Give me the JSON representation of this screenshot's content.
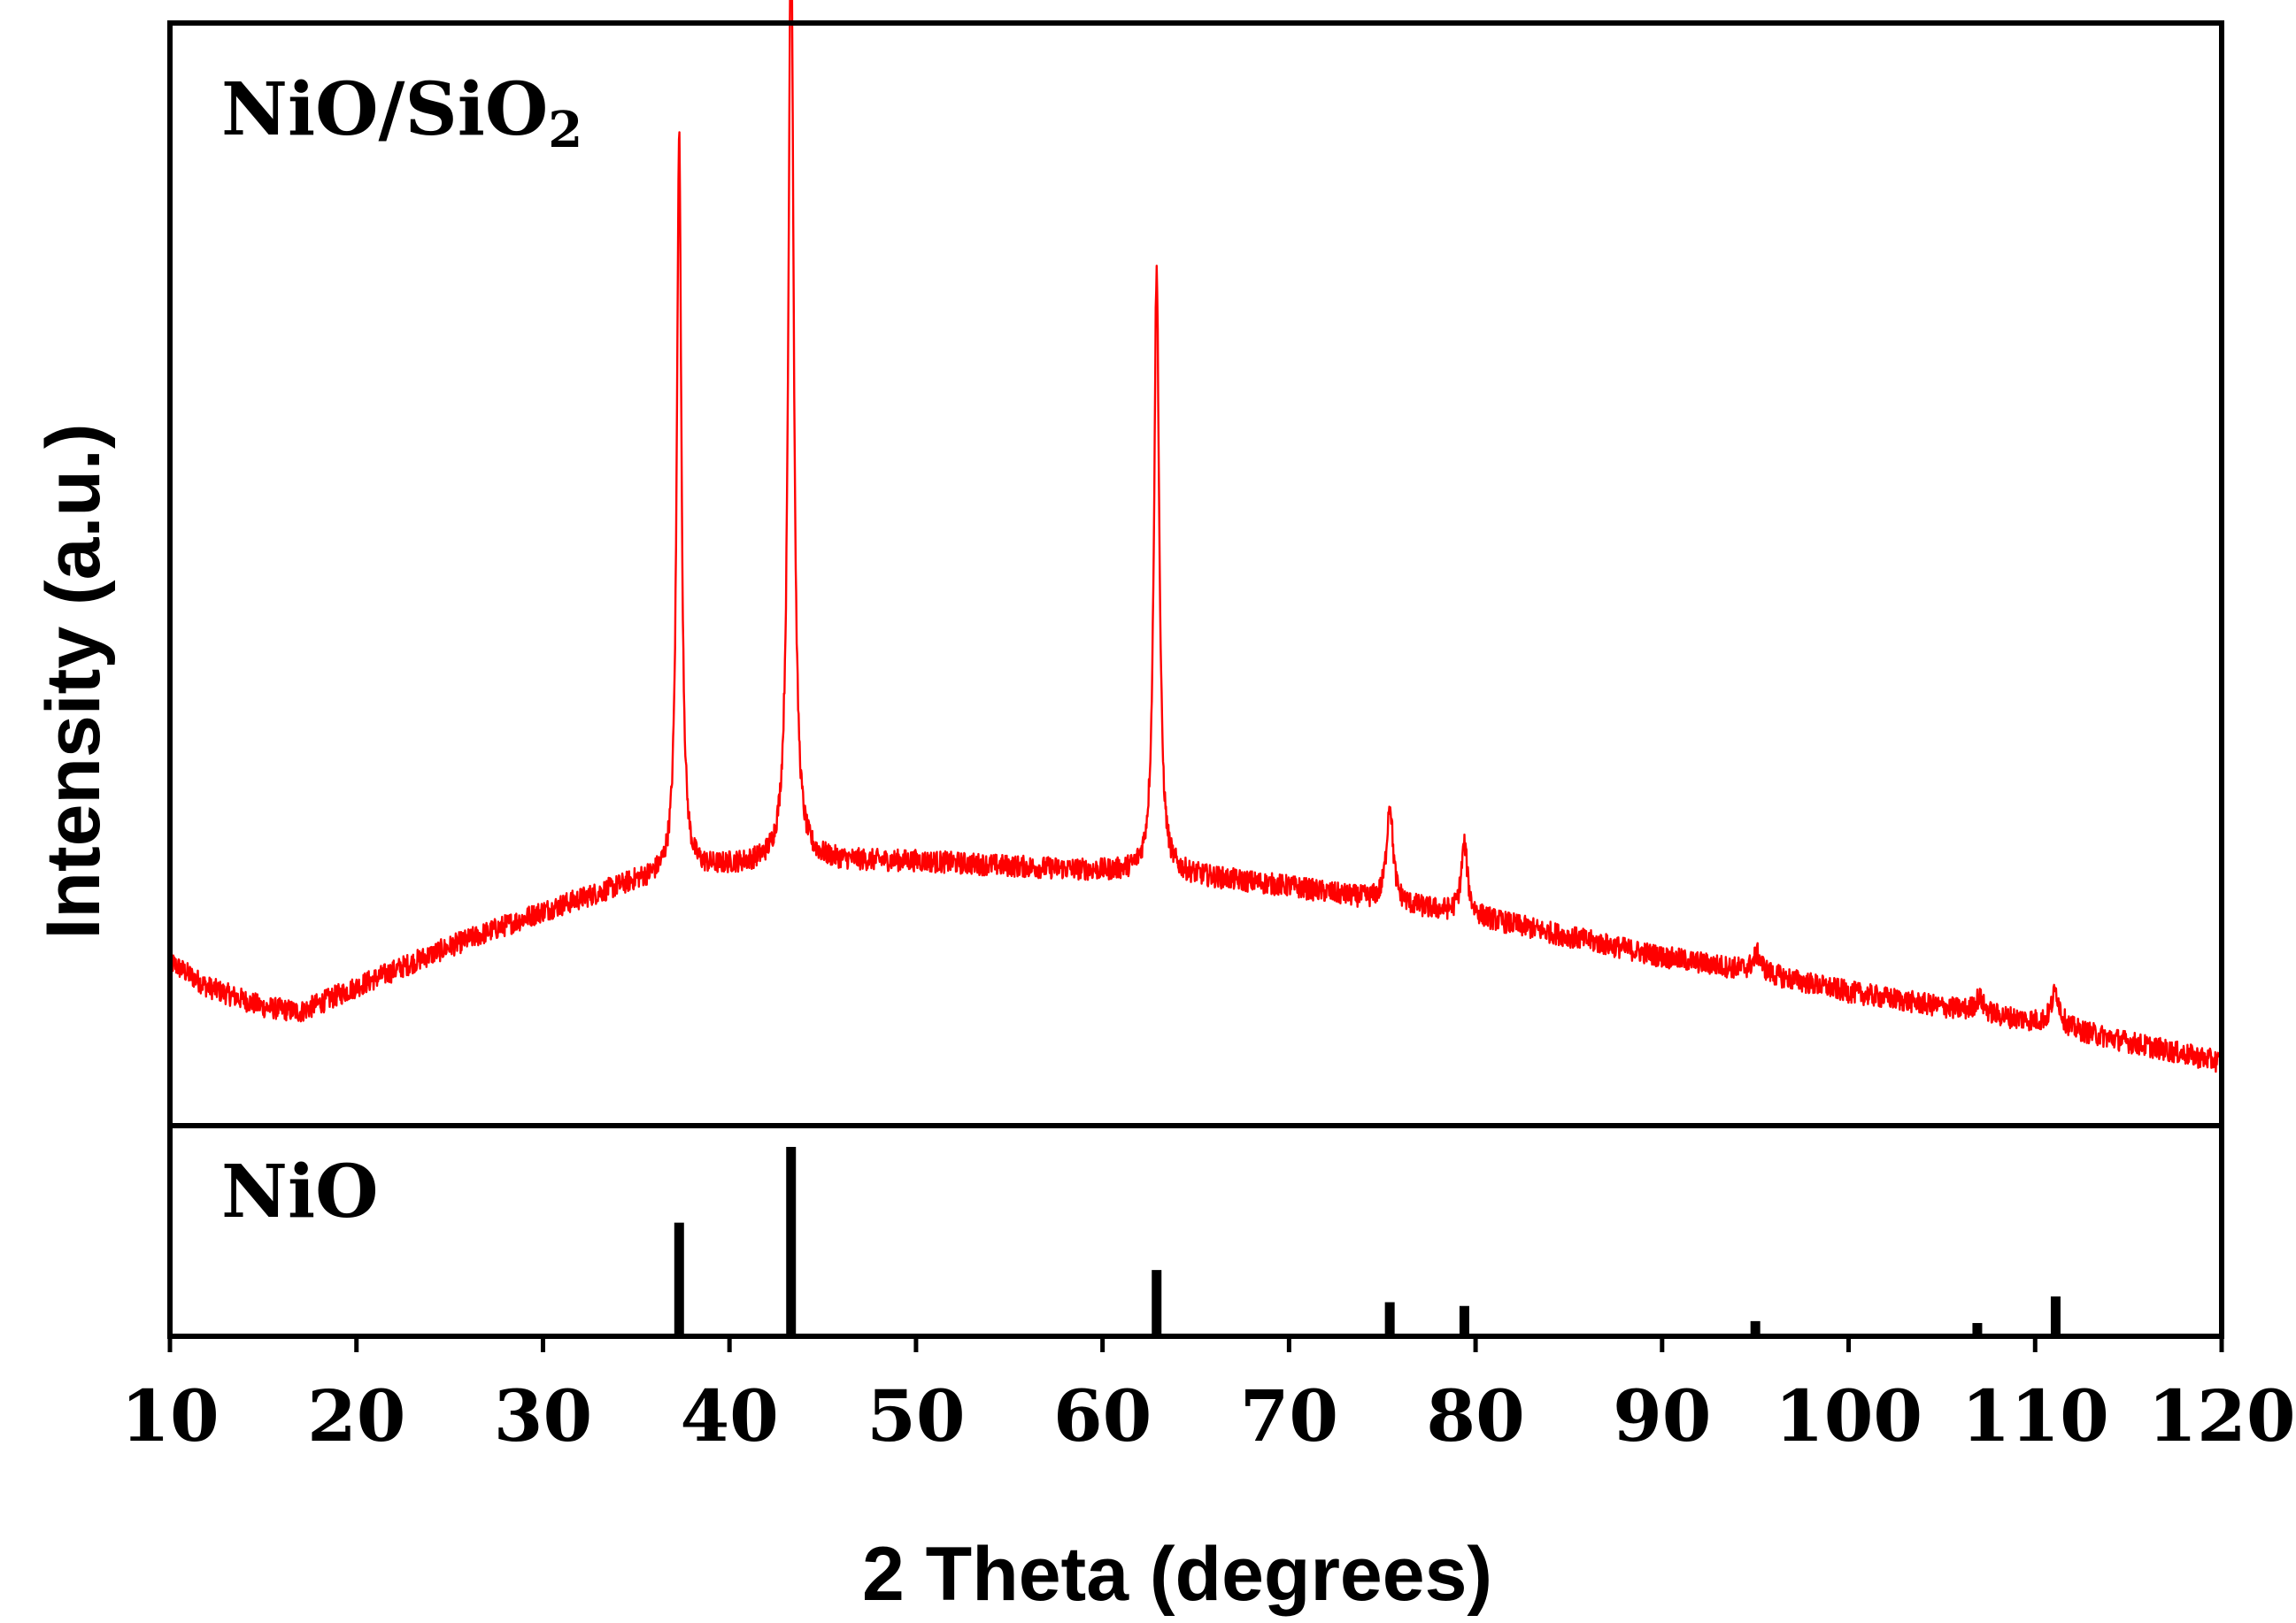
{
  "chart_data": {
    "type": "line",
    "xlabel": "2 Theta (degrees)",
    "ylabel": "Intensity (a.u.)",
    "xlim": [
      10,
      120
    ],
    "x_ticks": [
      "10",
      "20",
      "30",
      "40",
      "50",
      "60",
      "70",
      "80",
      "90",
      "100",
      "110",
      "120"
    ],
    "y_ticks_shown": false,
    "top_panel": {
      "label_main": "NiO/SiO",
      "label_sub": "2",
      "series": {
        "name": "NiO/SiO2",
        "color": "#ff0000",
        "ylim": [
          0,
          100
        ],
        "baseline": [
          [
            10,
            13.5
          ],
          [
            12,
            11
          ],
          [
            15,
            9
          ],
          [
            17,
            8.5
          ],
          [
            20,
            11
          ],
          [
            25,
            15
          ],
          [
            30,
            18.5
          ],
          [
            35,
            21.5
          ],
          [
            40,
            23
          ],
          [
            45,
            23.5
          ],
          [
            50,
            23.5
          ],
          [
            55,
            23
          ],
          [
            60,
            22.5
          ],
          [
            65,
            22
          ],
          [
            70,
            21
          ],
          [
            75,
            19.5
          ],
          [
            80,
            18
          ],
          [
            85,
            16
          ],
          [
            90,
            14
          ],
          [
            95,
            12.5
          ],
          [
            100,
            10.5
          ],
          [
            105,
            9
          ],
          [
            110,
            7.5
          ],
          [
            115,
            5.5
          ],
          [
            120,
            3.5
          ]
        ],
        "peaks": [
          {
            "x": 37.3,
            "height": 74,
            "width": 0.22
          },
          {
            "x": 43.3,
            "height": 96,
            "width": 0.25
          },
          {
            "x": 62.9,
            "height": 60,
            "width": 0.25
          },
          {
            "x": 75.4,
            "height": 10,
            "width": 0.3
          },
          {
            "x": 79.4,
            "height": 7,
            "width": 0.3
          },
          {
            "x": 95.1,
            "height": 1.8,
            "width": 0.4
          },
          {
            "x": 107.0,
            "height": 1.5,
            "width": 0.4
          },
          {
            "x": 111.1,
            "height": 3.5,
            "width": 0.4
          }
        ],
        "noise_amplitude": 1.1
      }
    },
    "bottom_panel": {
      "label": "NiO",
      "type": "reference-sticks",
      "color": "#000000",
      "ylim": [
        0,
        100
      ],
      "sticks": [
        {
          "x": 37.3,
          "intensity": 60
        },
        {
          "x": 43.3,
          "intensity": 100
        },
        {
          "x": 62.9,
          "intensity": 35
        },
        {
          "x": 75.4,
          "intensity": 18
        },
        {
          "x": 79.4,
          "intensity": 16
        },
        {
          "x": 95.0,
          "intensity": 8
        },
        {
          "x": 106.9,
          "intensity": 7
        },
        {
          "x": 111.1,
          "intensity": 21
        }
      ]
    }
  }
}
